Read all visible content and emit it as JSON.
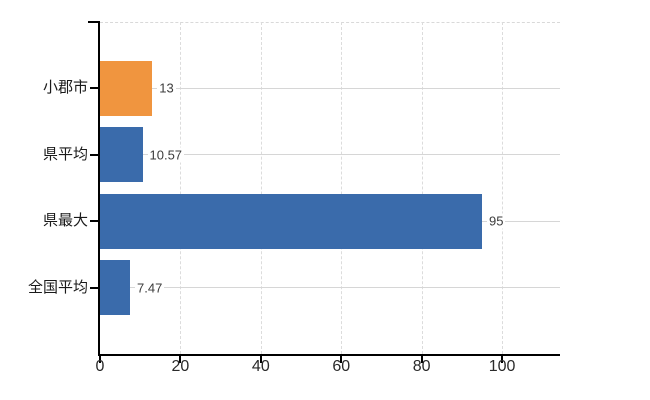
{
  "chart_data": {
    "type": "bar",
    "orientation": "horizontal",
    "title": "",
    "xlabel": "",
    "ylabel": "",
    "categories": [
      "小郡市",
      "県平均",
      "県最大",
      "全国平均"
    ],
    "values": [
      13,
      10.57,
      95,
      7.47
    ],
    "value_labels": [
      "13",
      "10.57",
      "95",
      "7.47"
    ],
    "bar_colors": [
      "#F0953F",
      "#3A6BAB",
      "#3A6BAB",
      "#3A6BAB"
    ],
    "x_ticks": [
      0,
      20,
      40,
      60,
      80,
      100
    ],
    "xlim": [
      0,
      114.4
    ],
    "grid": {
      "vertical_gridlines": "dashed light gray at each x tick",
      "horizontal_gridlines": "solid light gray at each category center",
      "top_border": "dashed light gray"
    },
    "legend": false,
    "colors": {
      "bar_blue": "#3A6BAB",
      "bar_orange": "#F0953F",
      "gridline": "#D8D8D8",
      "axis": "#000000",
      "tick_label_text": "#2B2B2B",
      "category_label_text": "#1A1A1A",
      "value_label_text": "#3C3C3C",
      "background": "#FFFFFF"
    }
  }
}
